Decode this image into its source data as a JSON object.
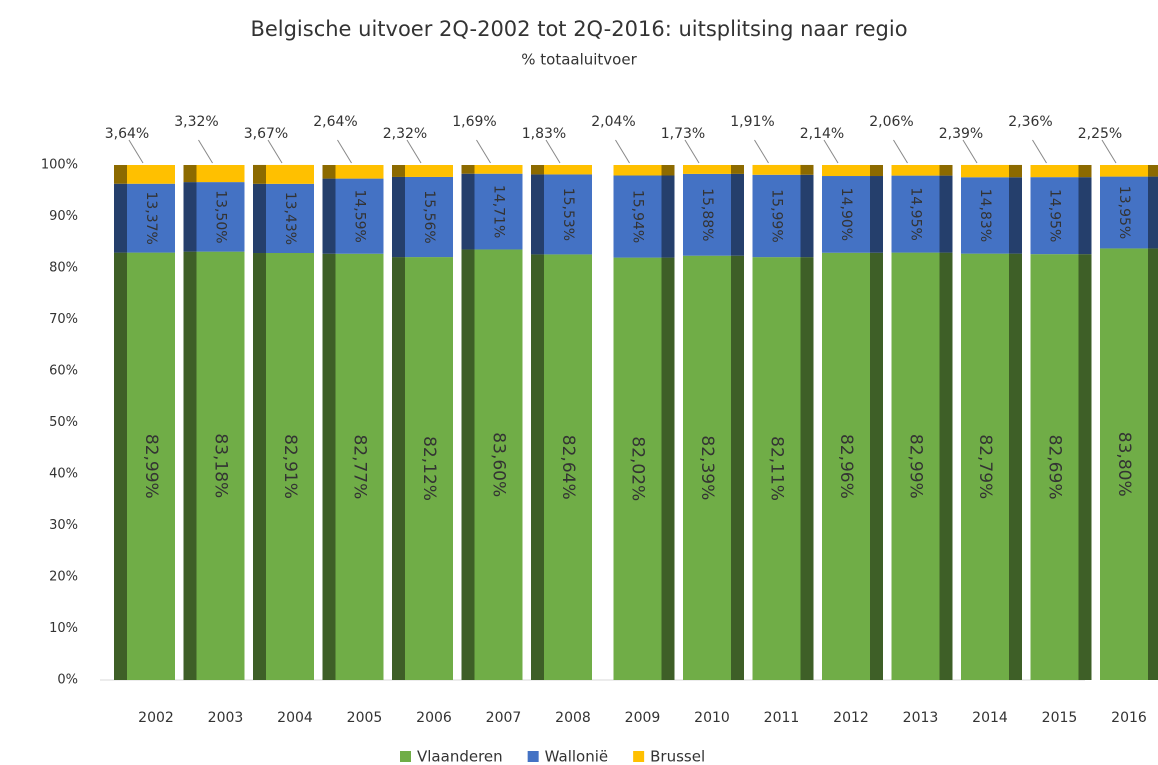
{
  "chart_data": {
    "type": "bar",
    "stacked": true,
    "title": "Belgische uitvoer 2Q-2002 tot 2Q-2016: uitsplitsing naar regio",
    "subtitle": "% totaaluitvoer",
    "categories": [
      "2002",
      "2003",
      "2004",
      "2005",
      "2006",
      "2007",
      "2008",
      "2009",
      "2010",
      "2011",
      "2012",
      "2013",
      "2014",
      "2015",
      "2016"
    ],
    "series": [
      {
        "name": "Vlaanderen",
        "color": "#70ad47",
        "values": [
          82.99,
          83.18,
          82.91,
          82.77,
          82.12,
          83.6,
          82.64,
          82.02,
          82.39,
          82.11,
          82.96,
          82.99,
          82.79,
          82.69,
          83.8
        ],
        "value_labels": [
          "82,99%",
          "83,18%",
          "82,91%",
          "82,77%",
          "82,12%",
          "83,60%",
          "82,64%",
          "82,02%",
          "82,39%",
          "82,11%",
          "82,96%",
          "82,99%",
          "82,79%",
          "82,69%",
          "83,80%"
        ]
      },
      {
        "name": "Wallonië",
        "color": "#4472c4",
        "values": [
          13.37,
          13.5,
          13.43,
          14.59,
          15.56,
          14.71,
          15.53,
          15.94,
          15.88,
          15.99,
          14.9,
          14.95,
          14.83,
          14.95,
          13.95
        ],
        "value_labels": [
          "13,37%",
          "13,50%",
          "13,43%",
          "14,59%",
          "15,56%",
          "14,71%",
          "15,53%",
          "15,94%",
          "15,88%",
          "15,99%",
          "14,90%",
          "14,95%",
          "14,83%",
          "14,95%",
          "13,95%"
        ]
      },
      {
        "name": "Brussel",
        "color": "#ffc000",
        "values": [
          3.64,
          3.32,
          3.67,
          2.64,
          2.32,
          1.69,
          1.83,
          2.04,
          1.73,
          1.91,
          2.14,
          2.06,
          2.39,
          2.36,
          2.25
        ],
        "value_labels": [
          "3,64%",
          "3,32%",
          "3,67%",
          "2,64%",
          "2,32%",
          "1,69%",
          "1,83%",
          "2,04%",
          "1,73%",
          "1,91%",
          "2,14%",
          "2,06%",
          "2,39%",
          "2,36%",
          "2,25%"
        ]
      }
    ],
    "ylim": [
      0,
      100
    ],
    "yticks": [
      {
        "value": 0,
        "label": "0%"
      },
      {
        "value": 10,
        "label": "10%"
      },
      {
        "value": 20,
        "label": "20%"
      },
      {
        "value": 30,
        "label": "30%"
      },
      {
        "value": 40,
        "label": "40%"
      },
      {
        "value": 50,
        "label": "50%"
      },
      {
        "value": 60,
        "label": "60%"
      },
      {
        "value": 70,
        "label": "70%"
      },
      {
        "value": 80,
        "label": "80%"
      },
      {
        "value": 90,
        "label": "90%"
      },
      {
        "value": 100,
        "label": "100%"
      }
    ],
    "grid": false,
    "legend": "bottom"
  }
}
